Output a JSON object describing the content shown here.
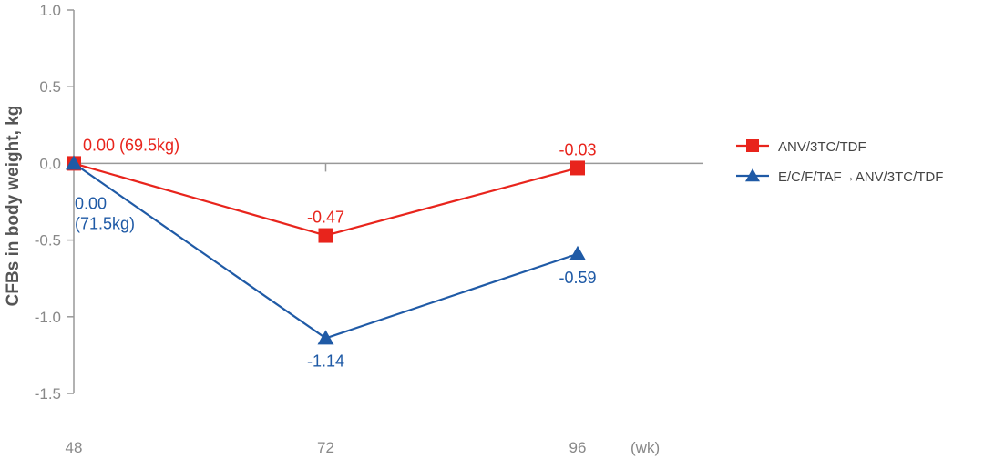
{
  "chart_data": {
    "type": "line",
    "ylabel": "CFBs in body weight, kg",
    "xunit": "(wk)",
    "x": [
      48,
      72,
      96
    ],
    "x_tick_labels": [
      "48",
      "72",
      "96"
    ],
    "ylim": [
      -1.5,
      1.0
    ],
    "y_ticks": [
      1.0,
      0.5,
      0.0,
      -0.5,
      -1.0,
      -1.5
    ],
    "y_tick_labels": [
      "1.0",
      "0.5",
      "0.0",
      "-0.5",
      "-1.0",
      "-1.5"
    ],
    "grid": false,
    "legend_position": "right",
    "series": [
      {
        "name": "ANV/3TC/TDF",
        "color": "#e8241c",
        "marker": "square",
        "values": [
          0.0,
          -0.47,
          -0.03
        ],
        "labels": [
          "0.00 (69.5kg)",
          "-0.47",
          "-0.03"
        ]
      },
      {
        "name": "E/C/F/TAF→ANV/3TC/TDF",
        "color": "#1f5aa6",
        "marker": "triangle",
        "values": [
          0.0,
          -1.14,
          -0.59
        ],
        "labels": [
          "0.00\n(71.5kg)",
          "-1.14",
          "-0.59"
        ]
      }
    ]
  }
}
